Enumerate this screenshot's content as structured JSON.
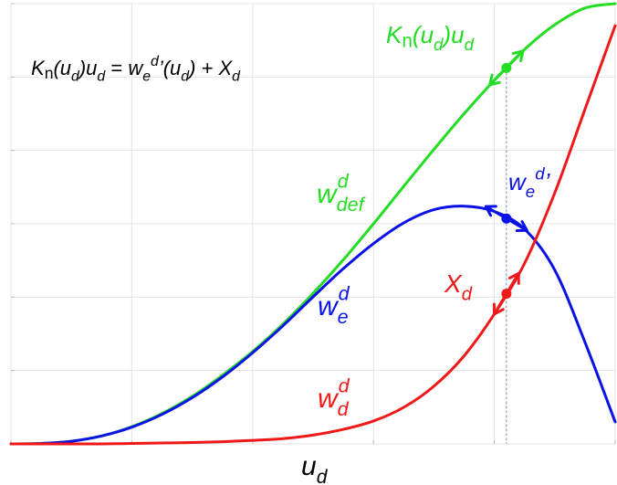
{
  "chart_data": {
    "type": "line",
    "title": "",
    "xlabel": {
      "base": "u",
      "sub": "d"
    },
    "ylabel": "",
    "grid": true,
    "xlim": [
      0,
      1
    ],
    "ylim": [
      0,
      1
    ],
    "x_ticks": [
      0,
      0.2,
      0.4,
      0.6,
      0.8,
      1.0
    ],
    "y_ticks": [
      0,
      0.1667,
      0.3333,
      0.5,
      0.6667,
      0.8333,
      1.0
    ],
    "marker_x": 0.82,
    "colors": {
      "green": "#22dd22",
      "blue": "#0a12e6",
      "red": "#f01818",
      "guide": "#6f8fb0"
    },
    "equation": {
      "parts": [
        {
          "t": "K",
          "s": "i"
        },
        {
          "t": "n",
          "s": "sub-up"
        },
        {
          "t": "(u",
          "s": "i"
        },
        {
          "t": "d",
          "s": "sub"
        },
        {
          "t": ")u",
          "s": "i"
        },
        {
          "t": "d",
          "s": "sub"
        },
        {
          "t": " = ",
          "s": "n"
        },
        {
          "t": "w",
          "s": "i"
        },
        {
          "t": "e",
          "s": "sub"
        },
        {
          "t": "d",
          "s": "sup"
        },
        {
          "t": "’(u",
          "s": "i"
        },
        {
          "t": "d",
          "s": "sub"
        },
        {
          "t": ") + X",
          "s": "i"
        },
        {
          "t": "d",
          "s": "sub"
        }
      ]
    },
    "series": [
      {
        "id": "wdef",
        "color": "#22dd22",
        "label": {
          "base": "w",
          "sub": "def",
          "sup": "d"
        },
        "x": [
          0,
          0.05,
          0.1,
          0.15,
          0.2,
          0.25,
          0.3,
          0.35,
          0.4,
          0.45,
          0.5,
          0.55,
          0.6,
          0.65,
          0.7,
          0.75,
          0.8,
          0.85,
          0.9,
          0.95,
          1.0
        ],
        "y": [
          0,
          0.001,
          0.006,
          0.018,
          0.039,
          0.069,
          0.108,
          0.156,
          0.21,
          0.272,
          0.342,
          0.418,
          0.5,
          0.585,
          0.669,
          0.75,
          0.826,
          0.896,
          0.952,
          0.99,
          1.0
        ]
      },
      {
        "id": "we",
        "color": "#0a12e6",
        "label": {
          "base": "w",
          "sub": "e",
          "sup": "d"
        },
        "x": [
          0,
          0.05,
          0.1,
          0.15,
          0.2,
          0.25,
          0.3,
          0.35,
          0.4,
          0.45,
          0.5,
          0.55,
          0.6,
          0.65,
          0.7,
          0.75,
          0.8,
          0.85,
          0.9,
          0.95,
          1.0
        ],
        "y": [
          0,
          0.001,
          0.006,
          0.018,
          0.038,
          0.067,
          0.105,
          0.152,
          0.207,
          0.268,
          0.334,
          0.398,
          0.455,
          0.502,
          0.532,
          0.54,
          0.528,
          0.488,
          0.395,
          0.231,
          0.05
        ]
      },
      {
        "id": "wd",
        "color": "#f01818",
        "label": {
          "base": "w",
          "sub": "d",
          "sup": "d"
        },
        "x": [
          0,
          0.05,
          0.1,
          0.15,
          0.2,
          0.25,
          0.3,
          0.35,
          0.4,
          0.45,
          0.5,
          0.55,
          0.6,
          0.65,
          0.7,
          0.75,
          0.8,
          0.85,
          0.9,
          0.95,
          1.0
        ],
        "y": [
          0,
          0,
          0,
          0,
          0.001,
          0.002,
          0.003,
          0.005,
          0.008,
          0.012,
          0.02,
          0.033,
          0.052,
          0.083,
          0.131,
          0.2,
          0.295,
          0.41,
          0.57,
          0.76,
          0.95
        ]
      }
    ],
    "annotations": [
      {
        "id": "K",
        "color": "#22dd22",
        "parts": [
          {
            "t": "K",
            "s": "i"
          },
          {
            "t": "n",
            "s": "sub-up"
          },
          {
            "t": "(u",
            "s": "i"
          },
          {
            "t": "d",
            "s": "sub"
          },
          {
            "t": ")u",
            "s": "i"
          },
          {
            "t": "d",
            "s": "sub"
          }
        ]
      },
      {
        "id": "wep",
        "color": "#0a12e6",
        "parts": [
          {
            "t": "w",
            "s": "i"
          },
          {
            "t": "e",
            "s": "sub"
          },
          {
            "t": "d",
            "s": "sup"
          },
          {
            "t": "’",
            "s": "i"
          }
        ]
      },
      {
        "id": "X",
        "color": "#f01818",
        "parts": [
          {
            "t": "X",
            "s": "i"
          },
          {
            "t": "d",
            "s": "sub"
          }
        ]
      }
    ]
  }
}
